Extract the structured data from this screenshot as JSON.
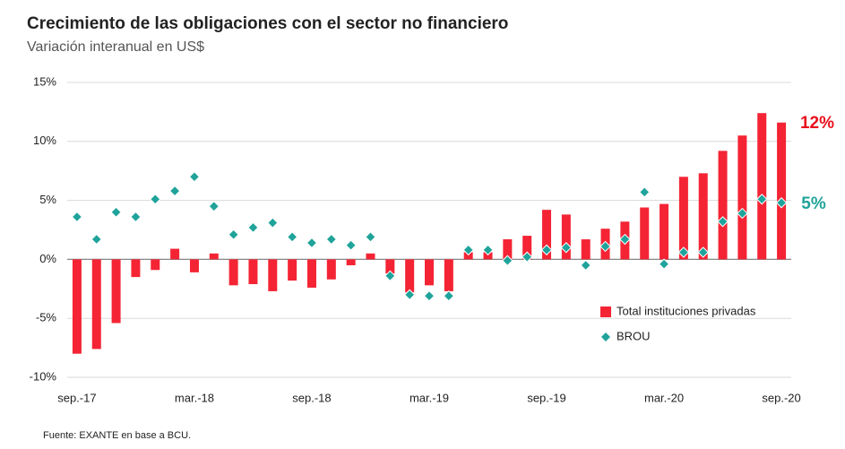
{
  "chart_data": {
    "type": "bar",
    "title": "Crecimiento de las obligaciones con el sector no financiero",
    "subtitle": "Variación interanual en US$",
    "source": "Fuente: EXANTE en base a BCU.",
    "categories": [
      "sep.-17",
      null,
      null,
      null,
      null,
      null,
      "mar.-18",
      null,
      null,
      null,
      null,
      null,
      "sep.-18",
      null,
      null,
      null,
      null,
      null,
      "mar.-19",
      null,
      null,
      null,
      null,
      null,
      "sep.-19",
      null,
      null,
      null,
      null,
      null,
      "mar.-20",
      null,
      null,
      null,
      null,
      null,
      "sep.-20"
    ],
    "series": [
      {
        "name": "Total instituciones privadas",
        "color": "#f42434",
        "kind": "bar",
        "values": [
          -8.0,
          -7.6,
          -5.4,
          -1.5,
          -0.9,
          0.9,
          -1.1,
          0.5,
          -2.2,
          -2.1,
          -2.7,
          -1.8,
          -2.4,
          -1.7,
          -0.5,
          0.5,
          -1.2,
          -2.8,
          -2.2,
          -2.7,
          0.6,
          0.6,
          1.7,
          2.0,
          4.2,
          3.8,
          1.7,
          2.6,
          3.2,
          4.4,
          4.7,
          7.0,
          7.3,
          9.2,
          10.5,
          12.4,
          11.6
        ]
      },
      {
        "name": "BROU",
        "color": "#1fa39a",
        "kind": "diamond",
        "values": [
          3.6,
          1.7,
          4.0,
          3.6,
          5.1,
          5.8,
          7.0,
          4.5,
          2.1,
          2.7,
          3.1,
          1.9,
          1.4,
          1.7,
          1.2,
          1.9,
          -1.4,
          -3.0,
          -3.1,
          -3.1,
          0.8,
          0.8,
          -0.1,
          0.2,
          0.8,
          1.0,
          -0.5,
          1.1,
          1.7,
          5.7,
          -0.4,
          0.6,
          0.6,
          3.2,
          3.9,
          5.1,
          4.8
        ]
      }
    ],
    "annotations": [
      {
        "text": "12%",
        "color": "#e8101c"
      },
      {
        "text": "5%",
        "color": "#1fa39a"
      }
    ],
    "ylim": [
      -10,
      15
    ],
    "yticks": [
      {
        "value": -10,
        "label": "-10%"
      },
      {
        "value": -5,
        "label": "-5%"
      },
      {
        "value": 0,
        "label": "0%"
      },
      {
        "value": 5,
        "label": "5%"
      },
      {
        "value": 10,
        "label": "10%"
      },
      {
        "value": 15,
        "label": "15%"
      }
    ],
    "grid": true,
    "legend": "lower right"
  }
}
